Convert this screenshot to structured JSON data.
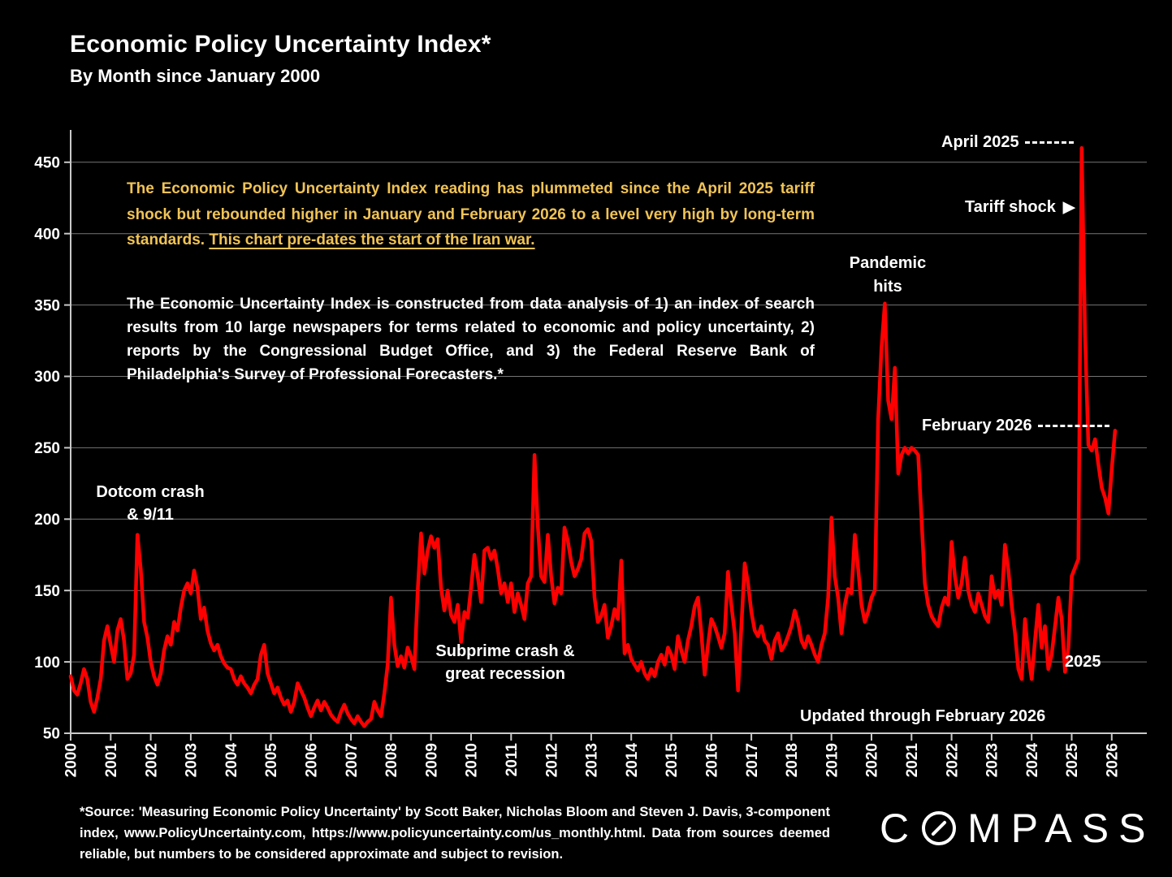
{
  "slide": {
    "title": "Economic Policy Uncertainty Index*",
    "subtitle": "By Month since January 2000",
    "background_color": "#000000"
  },
  "annotations": {
    "yellow_note_plain": "The Economic Policy Uncertainty Index reading has plummeted since the April 2025 tariff shock but rebounded higher in January and February 2026 to a level very high by long-term standards. ",
    "yellow_note_underlined": "This chart pre-dates the start of the Iran war.",
    "yellow_color": "#F0C355",
    "methodology_note": "The Economic Uncertainty Index is constructed from data analysis of 1) an index of search results from 10 large newspapers for terms related to economic and policy uncertainty, 2) reports by the Congressional Budget Office, and 3) the Federal Reserve Bank of Philadelphia's Survey of Professional Forecasters.*",
    "dotcom": "Dotcom crash\n& 9/11",
    "subprime": "Subprime crash &\ngreat recession",
    "pandemic": "Pandemic\nhits",
    "april_2025": "April 2025",
    "tariff_shock": "Tariff shock",
    "tariff_arrow": "▶",
    "february_2026": "February 2026",
    "year_2025": "2025",
    "updated": "Updated through February 2026"
  },
  "footer": {
    "source": "*Source: 'Measuring Economic Policy Uncertainty' by Scott Baker, Nicholas Bloom and Steven J. Davis, 3-component index, www.PolicyUncertainty.com, https://www.policyuncertainty.com/us_monthly.html. Data from sources deemed reliable, but numbers to be considered approximate and subject to revision.",
    "logo_c": "C",
    "logo_rest": "MPASS"
  },
  "chart_data": {
    "type": "line",
    "title": "Economic Policy Uncertainty Index by month since January 2000",
    "x_start": "2000-01",
    "x_end": "2026-02",
    "x_tick_years": [
      "2000",
      "2001",
      "2002",
      "2003",
      "2004",
      "2005",
      "2006",
      "2007",
      "2008",
      "2009",
      "2010",
      "2011",
      "2012",
      "2013",
      "2014",
      "2015",
      "2016",
      "2017",
      "2018",
      "2019",
      "2020",
      "2021",
      "2022",
      "2023",
      "2024",
      "2025",
      "2026"
    ],
    "y_ticks": [
      50,
      100,
      150,
      200,
      250,
      300,
      350,
      400,
      450
    ],
    "ylim": [
      50,
      470
    ],
    "grid": true,
    "line_color": "#ff0000",
    "grid_color": "#757575",
    "axis_color": "#c9c9c9",
    "series": [
      {
        "name": "Economic Policy Uncertainty Index (monthly)",
        "values": [
          90,
          80,
          77,
          85,
          95,
          88,
          72,
          65,
          75,
          88,
          115,
          125,
          112,
          100,
          122,
          130,
          115,
          88,
          92,
          105,
          189,
          165,
          128,
          117,
          100,
          90,
          84,
          92,
          108,
          118,
          112,
          128,
          122,
          138,
          150,
          155,
          148,
          164,
          152,
          130,
          138,
          122,
          113,
          108,
          112,
          104,
          99,
          96,
          95,
          88,
          84,
          90,
          85,
          82,
          78,
          84,
          88,
          105,
          112,
          92,
          85,
          78,
          82,
          75,
          70,
          73,
          65,
          72,
          85,
          80,
          75,
          68,
          62,
          68,
          73,
          66,
          72,
          68,
          63,
          60,
          58,
          65,
          70,
          64,
          60,
          57,
          62,
          58,
          55,
          58,
          60,
          72,
          66,
          62,
          78,
          98,
          145,
          112,
          97,
          104,
          96,
          110,
          104,
          95,
          150,
          190,
          162,
          178,
          188,
          180,
          186,
          152,
          136,
          150,
          133,
          128,
          140,
          114,
          135,
          131,
          152,
          175,
          160,
          142,
          178,
          180,
          172,
          178,
          165,
          148,
          155,
          142,
          155,
          135,
          148,
          140,
          130,
          155,
          160,
          245,
          195,
          160,
          156,
          189,
          160,
          141,
          152,
          148,
          194,
          185,
          170,
          160,
          165,
          172,
          190,
          193,
          185,
          145,
          128,
          132,
          140,
          117,
          125,
          137,
          130,
          171,
          106,
          112,
          102,
          98,
          94,
          100,
          92,
          88,
          95,
          90,
          100,
          105,
          98,
          110,
          105,
          95,
          118,
          108,
          100,
          115,
          125,
          139,
          145,
          120,
          91,
          112,
          130,
          125,
          118,
          110,
          120,
          163,
          140,
          120,
          80,
          125,
          169,
          155,
          135,
          122,
          118,
          125,
          115,
          112,
          102,
          115,
          120,
          108,
          112,
          118,
          125,
          136,
          128,
          115,
          110,
          118,
          112,
          105,
          100,
          112,
          120,
          145,
          201,
          160,
          145,
          120,
          140,
          151,
          148,
          189,
          165,
          140,
          128,
          135,
          145,
          150,
          270,
          320,
          351,
          283,
          270,
          306,
          232,
          245,
          250,
          246,
          250,
          248,
          245,
          200,
          155,
          140,
          132,
          128,
          125,
          138,
          145,
          140,
          184,
          160,
          145,
          155,
          173,
          150,
          140,
          135,
          148,
          140,
          132,
          128,
          160,
          145,
          150,
          140,
          182,
          165,
          140,
          120,
          95,
          88,
          130,
          105,
          88,
          115,
          140,
          110,
          125,
          95,
          105,
          125,
          145,
          130,
          93,
          110,
          160,
          166,
          172,
          460,
          330,
          252,
          248,
          256,
          238,
          222,
          215,
          204,
          235,
          262
        ]
      }
    ],
    "annotated_points": {
      "sep_2001_dotcom_911_peak": 189,
      "aug_2011_peak": 245,
      "may_2020_pandemic_peak": 351,
      "apr_2025_tariff_shock_peak": 460,
      "feb_2026_latest": 262
    }
  }
}
